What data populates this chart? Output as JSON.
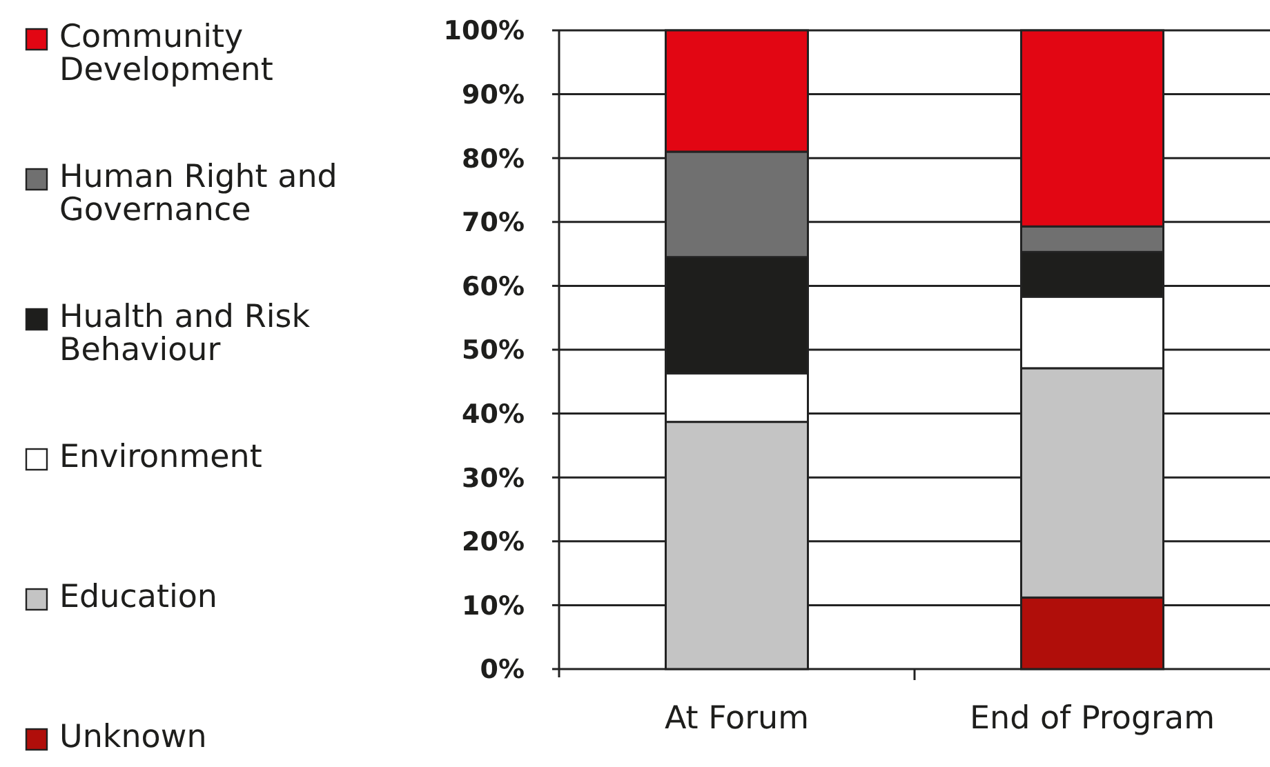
{
  "chart_data": {
    "type": "bar",
    "stacked": true,
    "categories": [
      "At Forum",
      "End of Program"
    ],
    "series": [
      {
        "name": "Unknown",
        "color": "#b00e0a",
        "values": [
          0,
          11.2
        ]
      },
      {
        "name": "Education",
        "color": "#c4c4c4",
        "values": [
          38.7,
          35.9
        ]
      },
      {
        "name": "Environment",
        "color": "#ffffff",
        "values": [
          7.6,
          11.2
        ]
      },
      {
        "name": "Hualth and Risk Behaviour",
        "color": "#1e1e1c",
        "values": [
          18.2,
          7.0
        ]
      },
      {
        "name": "Human Right and Governance",
        "color": "#707070",
        "values": [
          16.5,
          4.0
        ]
      },
      {
        "name": "Community Development",
        "color": "#e20613",
        "values": [
          19.0,
          30.7
        ]
      }
    ],
    "ylim": [
      0,
      100
    ],
    "yticks": [
      {
        "value": 0,
        "label": "0%"
      },
      {
        "value": 10,
        "label": "10%"
      },
      {
        "value": 20,
        "label": "20%"
      },
      {
        "value": 30,
        "label": "30%"
      },
      {
        "value": 40,
        "label": "40%"
      },
      {
        "value": 50,
        "label": "50%"
      },
      {
        "value": 60,
        "label": "60%"
      },
      {
        "value": 70,
        "label": "70%"
      },
      {
        "value": 80,
        "label": "80%"
      },
      {
        "value": 90,
        "label": "90%"
      },
      {
        "value": 100,
        "label": "100%"
      }
    ],
    "grid": "y",
    "legend": "left"
  }
}
